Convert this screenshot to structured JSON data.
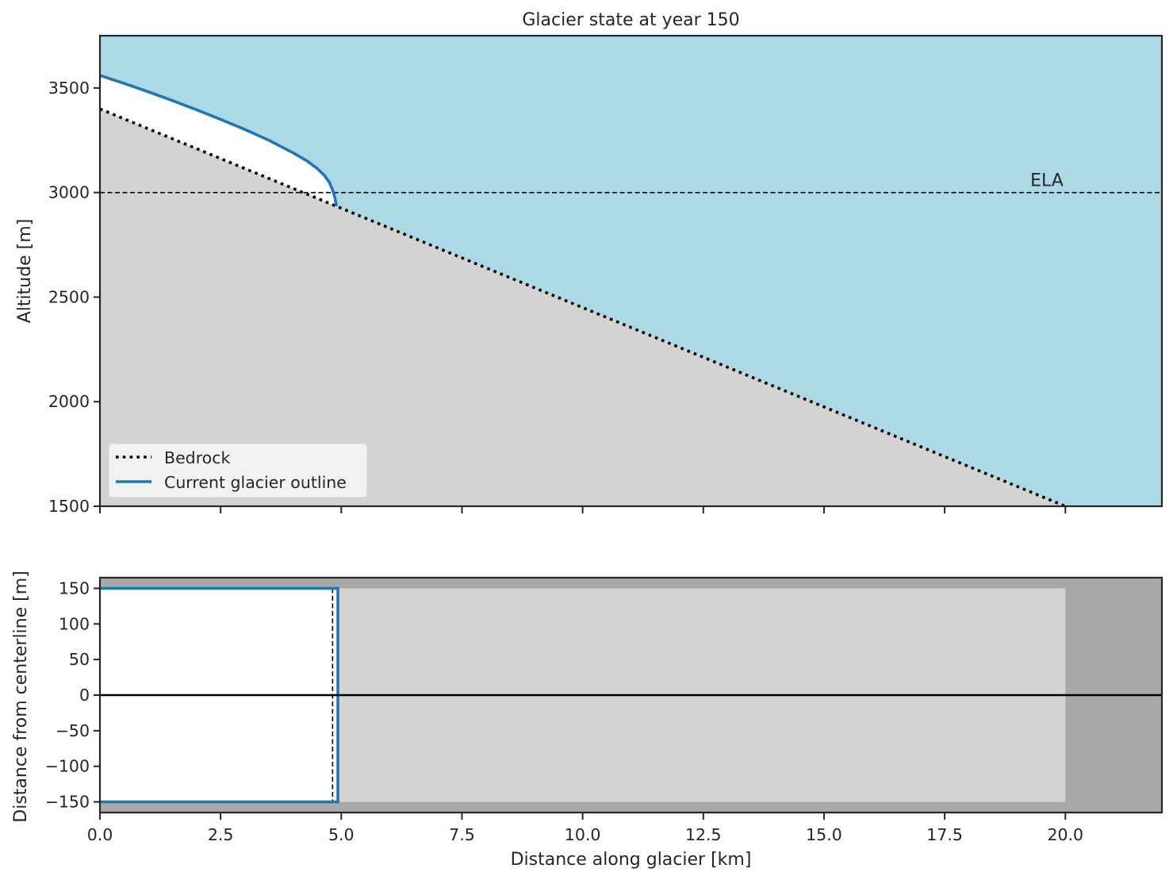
{
  "chart_data": [
    {
      "type": "line",
      "title": "Glacier state at year 150",
      "xlabel": "",
      "ylabel": "Altitude [m]",
      "xlim": [
        0,
        22
      ],
      "ylim": [
        1500,
        3750
      ],
      "yticks": [
        "3500",
        "3000",
        "2500",
        "2000",
        "1500"
      ],
      "ytick_values": [
        3500,
        3000,
        2500,
        2000,
        1500
      ],
      "xtick_values": [
        0,
        2.5,
        5,
        7.5,
        10,
        12.5,
        15,
        17.5,
        20
      ],
      "colors": {
        "sky": "#add8e6",
        "bedrock": "#d3d3d3",
        "glacier": "#ffffff",
        "outline": "#1f77b4"
      },
      "ela": {
        "label": "ELA",
        "altitude": 3000
      },
      "series": [
        {
          "name": "Bedrock",
          "style": "dotted",
          "x": [
            0,
            20
          ],
          "y": [
            3400,
            1500
          ]
        },
        {
          "name": "Current glacier outline",
          "style": "solid",
          "x": [
            0,
            0.5,
            1.0,
            1.5,
            2.0,
            2.5,
            3.0,
            3.5,
            4.0,
            4.3,
            4.5,
            4.65,
            4.75,
            4.82,
            4.87,
            4.9
          ],
          "y": [
            3560,
            3522,
            3482,
            3440,
            3396,
            3350,
            3302,
            3250,
            3190,
            3150,
            3115,
            3082,
            3050,
            3012,
            2975,
            2935
          ]
        }
      ],
      "legend": {
        "position": "lower-left",
        "entries": [
          "Bedrock",
          "Current glacier outline"
        ]
      },
      "grid": false
    },
    {
      "type": "area",
      "title": "",
      "xlabel": "Distance along glacier [km]",
      "ylabel": "Distance from centerline [m]",
      "xlim": [
        0,
        22
      ],
      "ylim": [
        -165,
        165
      ],
      "xticks": [
        "0.0",
        "2.5",
        "5.0",
        "7.5",
        "10.0",
        "12.5",
        "15.0",
        "17.5",
        "20.0"
      ],
      "xtick_values": [
        0,
        2.5,
        5,
        7.5,
        10,
        12.5,
        15,
        17.5,
        20
      ],
      "yticks": [
        "150",
        "100",
        "50",
        "0",
        "−50",
        "−100",
        "−150"
      ],
      "ytick_values": [
        150,
        100,
        50,
        0,
        -50,
        -100,
        -150
      ],
      "colors": {
        "background": "#a9a9a9",
        "valley": "#d3d3d3",
        "glacier": "#ffffff",
        "outline": "#1f77b4"
      },
      "valley": {
        "x": [
          0,
          20
        ],
        "half_width": 150
      },
      "glacier": {
        "x": [
          0,
          4.93
        ],
        "half_width": 150
      },
      "ela_position": 4.82,
      "centerline": 0,
      "grid": false
    }
  ]
}
